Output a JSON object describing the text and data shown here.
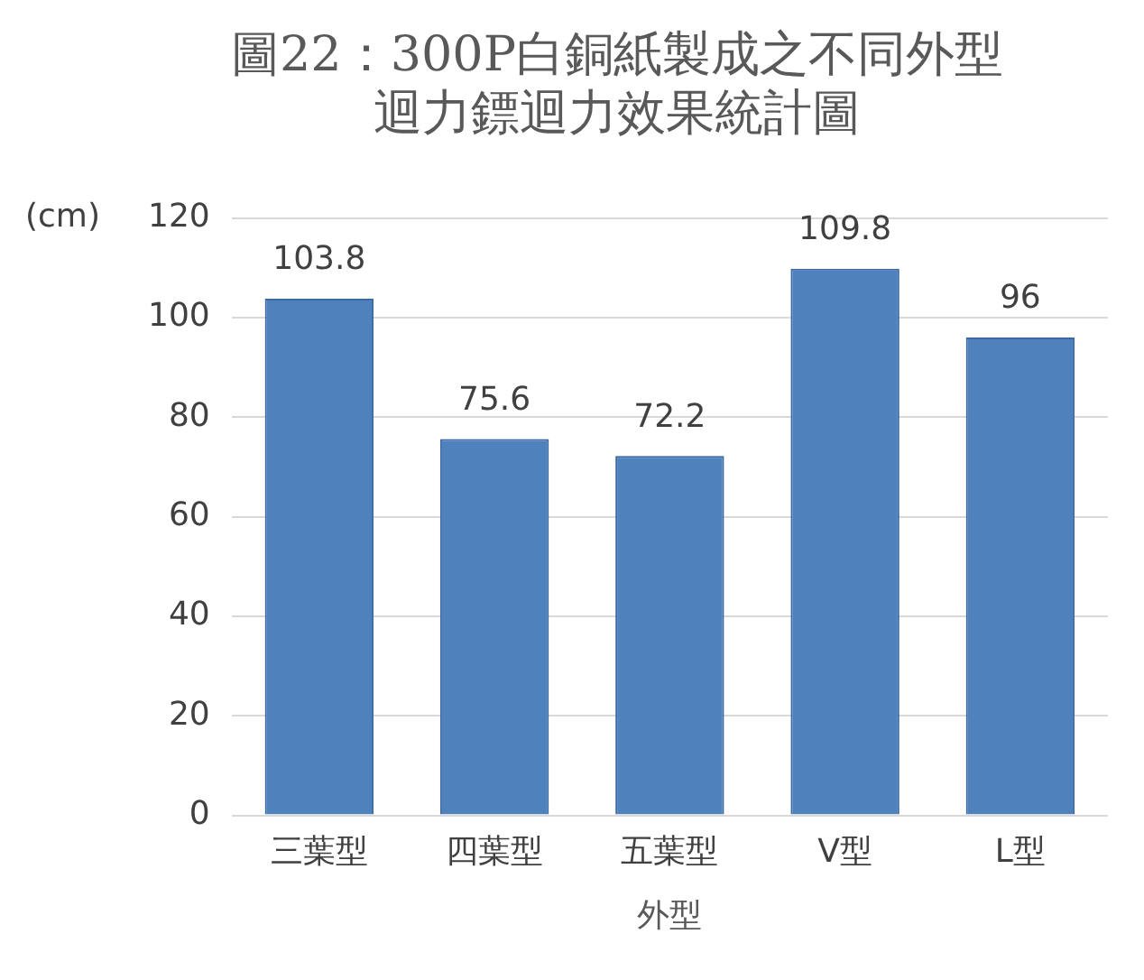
{
  "chart_data": {
    "type": "bar",
    "title": "圖22：300P白銅紙製成之不同外型迴力鏢迴力效果統計圖",
    "xlabel": "外型",
    "ylabel": "(cm)",
    "categories": [
      "三葉型",
      "四葉型",
      "五葉型",
      "V型",
      "L型"
    ],
    "values": [
      103.8,
      75.6,
      72.2,
      109.8,
      96
    ],
    "color": "#4f81bd",
    "ylim": [
      0,
      120
    ],
    "yticks": [
      0,
      20,
      40,
      60,
      80,
      100,
      120
    ],
    "grid": "y",
    "data_labels": true,
    "legend": false
  }
}
